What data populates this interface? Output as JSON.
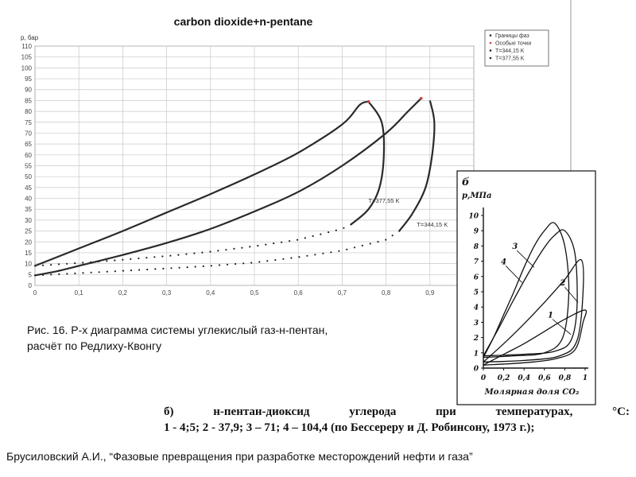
{
  "chart_data": [
    {
      "type": "line",
      "title": "carbon dioxide+n-pentane",
      "ylabel": "p, бар",
      "xlabel": "",
      "xlim": [
        0,
        1
      ],
      "ylim": [
        0,
        110
      ],
      "x_ticks": [
        "0",
        "0,1",
        "0,2",
        "0,3",
        "0,4",
        "0,5",
        "0,6",
        "0,7",
        "0,8",
        "0,9",
        "1"
      ],
      "y_ticks": [
        "0",
        "5",
        "10",
        "15",
        "20",
        "25",
        "30",
        "35",
        "40",
        "45",
        "50",
        "55",
        "60",
        "65",
        "70",
        "75",
        "80",
        "85",
        "90",
        "95",
        "100",
        "105",
        "110"
      ],
      "grid": true,
      "legend": {
        "placement": "top-right",
        "entries": [
          {
            "label": "Границы фаз",
            "color": "#222222"
          },
          {
            "label": "Особые точки",
            "color": "#d04040"
          },
          {
            "label": "T=344,15 K",
            "color": "#222222"
          },
          {
            "label": "T=377,55 K",
            "color": "#222222"
          }
        ]
      },
      "annotations": [
        {
          "text": "T=377,55 K",
          "x": 0.76,
          "y": 38
        },
        {
          "text": "T=344,15 K",
          "x": 0.87,
          "y": 27
        }
      ],
      "series": [
        {
          "name": "T=344,15 K",
          "bubble": [
            [
              0,
              4.6
            ],
            [
              0.05,
              6.5
            ],
            [
              0.1,
              9
            ],
            [
              0.2,
              14
            ],
            [
              0.3,
              19.5
            ],
            [
              0.4,
              26
            ],
            [
              0.5,
              34
            ],
            [
              0.6,
              43
            ],
            [
              0.7,
              55
            ],
            [
              0.8,
              70
            ],
            [
              0.85,
              80
            ],
            [
              0.88,
              86
            ]
          ],
          "dew": [
            [
              0.9,
              85
            ],
            [
              0.91,
              75
            ],
            [
              0.905,
              60
            ],
            [
              0.89,
              45
            ],
            [
              0.86,
              33
            ],
            [
              0.83,
              25
            ],
            [
              0.8,
              21
            ],
            [
              0.7,
              16
            ],
            [
              0.6,
              13
            ],
            [
              0.5,
              10.5
            ],
            [
              0.4,
              9
            ],
            [
              0.3,
              7.8
            ],
            [
              0.2,
              6.7
            ],
            [
              0.1,
              5.6
            ],
            [
              0,
              4.6
            ]
          ],
          "critical_point": [
            0.88,
            86
          ]
        },
        {
          "name": "T=377,55 K",
          "bubble": [
            [
              0,
              9
            ],
            [
              0.1,
              17
            ],
            [
              0.2,
              25
            ],
            [
              0.3,
              33.5
            ],
            [
              0.4,
              42
            ],
            [
              0.5,
              51
            ],
            [
              0.6,
              61
            ],
            [
              0.7,
              74
            ],
            [
              0.74,
              83
            ],
            [
              0.76,
              84.5
            ]
          ],
          "dew": [
            [
              0.76,
              84.5
            ],
            [
              0.79,
              75
            ],
            [
              0.795,
              60
            ],
            [
              0.785,
              45
            ],
            [
              0.76,
              35
            ],
            [
              0.72,
              28
            ],
            [
              0.7,
              26
            ],
            [
              0.6,
              21
            ],
            [
              0.5,
              18
            ],
            [
              0.4,
              15.5
            ],
            [
              0.3,
              13.5
            ],
            [
              0.2,
              11.8
            ],
            [
              0.1,
              10.3
            ],
            [
              0,
              9
            ]
          ],
          "critical_point": [
            0.76,
            84.5
          ]
        }
      ]
    },
    {
      "type": "line",
      "panel_label": "б",
      "ylabel": "p,МПа",
      "xlabel": "Молярная доля CO₂",
      "xlim": [
        0,
        1
      ],
      "ylim": [
        0,
        10
      ],
      "x_ticks": [
        "0",
        "0,2",
        "0,4",
        "0,6",
        "0,8",
        "1"
      ],
      "y_ticks": [
        "0",
        "1",
        "2",
        "3",
        "4",
        "5",
        "6",
        "7",
        "8",
        "9",
        "10"
      ],
      "grid": false,
      "series": [
        {
          "name": "1",
          "bubble": [
            [
              0,
              0.2
            ],
            [
              0.2,
              0.9
            ],
            [
              0.4,
              1.6
            ],
            [
              0.6,
              2.4
            ],
            [
              0.8,
              3.2
            ],
            [
              1,
              3.8
            ]
          ],
          "dew": [
            [
              1,
              3.8
            ],
            [
              0.98,
              3
            ],
            [
              0.9,
              1.2
            ],
            [
              0.7,
              0.6
            ],
            [
              0.4,
              0.35
            ],
            [
              0,
              0.2
            ]
          ]
        },
        {
          "name": "2",
          "bubble": [
            [
              0,
              0.4
            ],
            [
              0.2,
              1.6
            ],
            [
              0.4,
              2.9
            ],
            [
              0.6,
              4.3
            ],
            [
              0.8,
              5.8
            ],
            [
              0.96,
              7.1
            ]
          ],
          "dew": [
            [
              0.96,
              7.1
            ],
            [
              0.98,
              5
            ],
            [
              0.92,
              1.8
            ],
            [
              0.75,
              0.8
            ],
            [
              0.4,
              0.5
            ],
            [
              0,
              0.4
            ]
          ]
        },
        {
          "name": "3",
          "bubble": [
            [
              0,
              0.7
            ],
            [
              0.1,
              2
            ],
            [
              0.2,
              3.5
            ],
            [
              0.3,
              5
            ],
            [
              0.4,
              6.6
            ],
            [
              0.5,
              8
            ],
            [
              0.6,
              9
            ],
            [
              0.7,
              9.5
            ]
          ],
          "dew": [
            [
              0.7,
              9.5
            ],
            [
              0.8,
              8
            ],
            [
              0.84,
              5
            ],
            [
              0.78,
              2
            ],
            [
              0.6,
              1
            ],
            [
              0.3,
              0.8
            ],
            [
              0,
              0.7
            ]
          ]
        },
        {
          "name": "4",
          "bubble": [
            [
              0,
              0.8
            ],
            [
              0.15,
              2.6
            ],
            [
              0.3,
              4.5
            ],
            [
              0.45,
              6.3
            ],
            [
              0.6,
              7.9
            ],
            [
              0.7,
              8.7
            ],
            [
              0.8,
              9
            ]
          ],
          "dew": [
            [
              0.8,
              9
            ],
            [
              0.9,
              7.5
            ],
            [
              0.92,
              4
            ],
            [
              0.86,
              1.8
            ],
            [
              0.7,
              1.1
            ],
            [
              0.4,
              0.9
            ],
            [
              0,
              0.8
            ]
          ]
        }
      ]
    }
  ],
  "caption": {
    "line1": "Рис. 16. P-x диаграмма системы углекислый газ-н-пентан,",
    "line2": "расчёт по Редлиху-Квонгу"
  },
  "inset_caption": {
    "label": "б)",
    "subject": "н-пентан-диоксид",
    "w1": "углерода",
    "w2": "при",
    "w3": "температурах,",
    "unit": "°C:",
    "line2": "1 - 4;5; 2 - 37,9; 3 – 71; 4 – 104,4 (по Бессереру и Д. Робинсону, 1973 г.);"
  },
  "reference": "Брусиловский А.И., “Фазовые превращения при разработке месторождений нефти и газа”"
}
